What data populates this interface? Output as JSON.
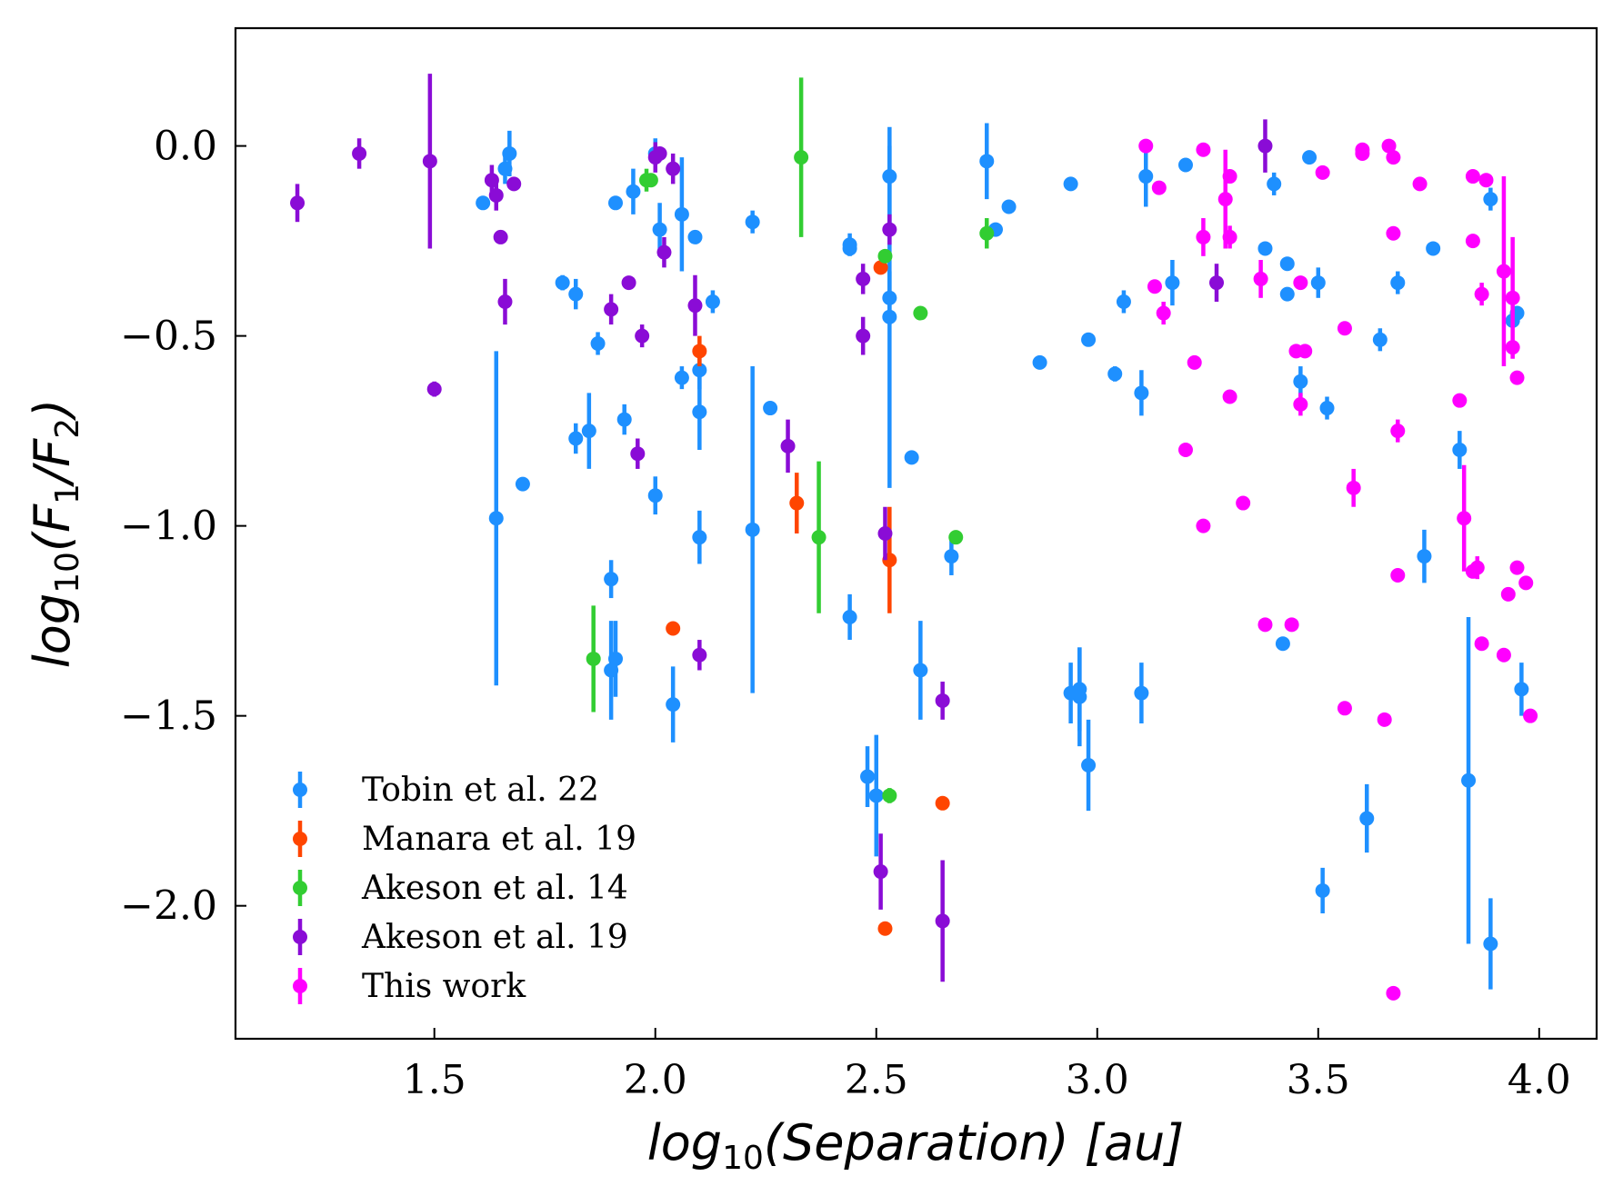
{
  "chart_data": {
    "type": "scatter",
    "title": "",
    "xlabel": "log10(Separation) [au]",
    "ylabel": "log10(F1/F2)",
    "xlim": [
      1.05,
      4.13
    ],
    "ylim": [
      -2.35,
      0.31
    ],
    "xticks": [
      1.5,
      2.0,
      2.5,
      3.0,
      3.5,
      4.0
    ],
    "xtick_labels": [
      "1.5",
      "2.0",
      "2.5",
      "3.0",
      "3.5",
      "4.0"
    ],
    "yticks": [
      0.0,
      -0.5,
      -1.0,
      -1.5,
      -2.0
    ],
    "ytick_labels": [
      "0.0",
      "−0.5",
      "−1.0",
      "−1.5",
      "−2.0"
    ],
    "grid": false,
    "legend_position": "bottom-left",
    "series": [
      {
        "name": "Tobin et al. 22",
        "color": "#1E90FF",
        "points": [
          [
            1.61,
            -0.15,
            0
          ],
          [
            1.66,
            -0.06,
            0.04
          ],
          [
            1.67,
            -0.02,
            0.06
          ],
          [
            1.79,
            -0.36,
            0.02
          ],
          [
            1.82,
            -0.39,
            0.04
          ],
          [
            1.82,
            -0.77,
            0.04
          ],
          [
            1.85,
            -0.75,
            0.1
          ],
          [
            1.87,
            -0.52,
            0.03
          ],
          [
            1.91,
            -0.15,
            0
          ],
          [
            1.95,
            -0.12,
            0.06
          ],
          [
            1.93,
            -0.72,
            0.04
          ],
          [
            1.9,
            -1.14,
            0.05
          ],
          [
            1.9,
            -1.38,
            0.13
          ],
          [
            1.91,
            -1.35,
            0.1
          ],
          [
            1.64,
            -0.98,
            0.44
          ],
          [
            1.7,
            -0.89,
            0
          ],
          [
            2.0,
            -0.02,
            0.04
          ],
          [
            2.01,
            -0.22,
            0.07
          ],
          [
            2.06,
            -0.18,
            0.15
          ],
          [
            2.09,
            -0.24,
            0
          ],
          [
            2.06,
            -0.61,
            0.03
          ],
          [
            2.1,
            -0.59,
            0.05
          ],
          [
            2.1,
            -0.7,
            0.1
          ],
          [
            2.13,
            -0.41,
            0.03
          ],
          [
            2.0,
            -0.92,
            0.05
          ],
          [
            2.1,
            -1.03,
            0.07
          ],
          [
            2.04,
            -1.47,
            0.1
          ],
          [
            2.22,
            -0.2,
            0.03
          ],
          [
            2.26,
            -0.69,
            0
          ],
          [
            2.22,
            -1.01,
            0.43
          ],
          [
            2.44,
            -0.26,
            0.03
          ],
          [
            2.44,
            -0.27,
            0
          ],
          [
            2.44,
            -1.24,
            0.06
          ],
          [
            2.48,
            -1.66,
            0.08
          ],
          [
            2.5,
            -1.71,
            0.16
          ],
          [
            2.53,
            -0.08,
            0.13
          ],
          [
            2.53,
            -0.4,
            0.07
          ],
          [
            2.53,
            -0.45,
            0.45
          ],
          [
            2.58,
            -0.82,
            0
          ],
          [
            2.6,
            -1.38,
            0.13
          ],
          [
            2.67,
            -1.08,
            0.05
          ],
          [
            2.75,
            -0.04,
            0.1
          ],
          [
            2.77,
            -0.22,
            0
          ],
          [
            2.8,
            -0.16,
            0
          ],
          [
            2.87,
            -0.57,
            0
          ],
          [
            2.94,
            -0.1,
            0
          ],
          [
            2.98,
            -0.51,
            0
          ],
          [
            3.04,
            -0.6,
            0.02
          ],
          [
            3.06,
            -0.41,
            0.03
          ],
          [
            3.1,
            -0.65,
            0.06
          ],
          [
            3.11,
            -0.08,
            0.08
          ],
          [
            3.17,
            -0.36,
            0.06
          ],
          [
            3.2,
            -0.05,
            0
          ],
          [
            2.94,
            -1.44,
            0.08
          ],
          [
            2.96,
            -1.43,
            0.11
          ],
          [
            2.96,
            -1.45,
            0.13
          ],
          [
            2.98,
            -1.63,
            0.12
          ],
          [
            3.1,
            -1.44,
            0.08
          ],
          [
            3.38,
            -0.27,
            0
          ],
          [
            3.4,
            -0.1,
            0.03
          ],
          [
            3.43,
            -0.31,
            0
          ],
          [
            3.43,
            -0.39,
            0
          ],
          [
            3.46,
            -0.62,
            0.04
          ],
          [
            3.48,
            -0.03,
            0
          ],
          [
            3.5,
            -0.36,
            0.04
          ],
          [
            3.52,
            -0.69,
            0.03
          ],
          [
            3.42,
            -1.31,
            0
          ],
          [
            3.51,
            -1.96,
            0.06
          ],
          [
            3.61,
            -1.77,
            0.09
          ],
          [
            3.64,
            -0.51,
            0.03
          ],
          [
            3.68,
            -0.36,
            0.03
          ],
          [
            3.74,
            -1.08,
            0.07
          ],
          [
            3.76,
            -0.27,
            0
          ],
          [
            3.82,
            -0.8,
            0.05
          ],
          [
            3.84,
            -1.67,
            0.43
          ],
          [
            3.89,
            -0.14,
            0.03
          ],
          [
            3.89,
            -2.1,
            0.12
          ],
          [
            3.94,
            -0.46,
            0
          ],
          [
            3.95,
            -0.44,
            0
          ],
          [
            3.96,
            -1.43,
            0.07
          ]
        ]
      },
      {
        "name": "Manara et al. 19",
        "color": "#FF4500",
        "points": [
          [
            2.04,
            -1.27,
            0
          ],
          [
            2.1,
            -0.54,
            0.04
          ],
          [
            2.32,
            -0.94,
            0.08
          ],
          [
            2.51,
            -0.32,
            0
          ],
          [
            2.52,
            -2.06,
            0
          ],
          [
            2.53,
            -1.09,
            0.14
          ],
          [
            2.65,
            -1.73,
            0
          ]
        ]
      },
      {
        "name": "Akeson et al. 14",
        "color": "#32CD32",
        "points": [
          [
            1.86,
            -1.35,
            0.14
          ],
          [
            1.98,
            -0.09,
            0.03
          ],
          [
            1.99,
            -0.09,
            0
          ],
          [
            2.33,
            -0.03,
            0.21
          ],
          [
            2.37,
            -1.03,
            0.2
          ],
          [
            2.52,
            -0.29,
            0
          ],
          [
            2.53,
            -1.71,
            0.02
          ],
          [
            2.6,
            -0.44,
            0
          ],
          [
            2.68,
            -1.03,
            0
          ],
          [
            2.75,
            -0.23,
            0.04
          ]
        ]
      },
      {
        "name": "Akeson et al. 19",
        "color": "#8A0CD6",
        "points": [
          [
            1.19,
            -0.15,
            0.05
          ],
          [
            1.33,
            -0.02,
            0.04
          ],
          [
            1.49,
            -0.04,
            0.23
          ],
          [
            1.5,
            -0.64,
            0.02
          ],
          [
            1.63,
            -0.09,
            0.04
          ],
          [
            1.64,
            -0.13,
            0.04
          ],
          [
            1.65,
            -0.24,
            0
          ],
          [
            1.66,
            -0.41,
            0.06
          ],
          [
            1.68,
            -0.1,
            0
          ],
          [
            1.9,
            -0.43,
            0.04
          ],
          [
            1.94,
            -0.36,
            0
          ],
          [
            1.96,
            -0.81,
            0.04
          ],
          [
            1.97,
            -0.5,
            0.03
          ],
          [
            2.0,
            -0.03,
            0.04
          ],
          [
            2.01,
            -0.02,
            0
          ],
          [
            2.02,
            -0.28,
            0.04
          ],
          [
            2.04,
            -0.06,
            0.04
          ],
          [
            2.09,
            -0.42,
            0.08
          ],
          [
            2.1,
            -1.34,
            0.04
          ],
          [
            2.3,
            -0.79,
            0.07
          ],
          [
            2.47,
            -0.35,
            0.04
          ],
          [
            2.47,
            -0.5,
            0.05
          ],
          [
            2.51,
            -1.91,
            0.1
          ],
          [
            2.52,
            -1.02,
            0.07
          ],
          [
            2.53,
            -0.22,
            0.04
          ],
          [
            2.65,
            -1.46,
            0.05
          ],
          [
            2.65,
            -2.04,
            0.16
          ],
          [
            3.27,
            -0.36,
            0.05
          ],
          [
            3.38,
            0.0,
            0.07
          ]
        ]
      },
      {
        "name": "This work",
        "color": "#FF00FF",
        "points": [
          [
            3.11,
            0.0,
            0
          ],
          [
            3.13,
            -0.37,
            0
          ],
          [
            3.14,
            -0.11,
            0
          ],
          [
            3.15,
            -0.44,
            0.03
          ],
          [
            3.22,
            -0.57,
            0
          ],
          [
            3.2,
            -0.8,
            0
          ],
          [
            3.24,
            -0.01,
            0
          ],
          [
            3.24,
            -0.24,
            0.05
          ],
          [
            3.24,
            -1.0,
            0
          ],
          [
            3.29,
            -0.14,
            0.13
          ],
          [
            3.3,
            -0.08,
            0
          ],
          [
            3.3,
            -0.24,
            0.03
          ],
          [
            3.3,
            -0.66,
            0
          ],
          [
            3.33,
            -0.94,
            0
          ],
          [
            3.37,
            -0.35,
            0.05
          ],
          [
            3.38,
            -1.26,
            0
          ],
          [
            3.44,
            -1.26,
            0
          ],
          [
            3.45,
            -0.54,
            0
          ],
          [
            3.47,
            -0.54,
            0
          ],
          [
            3.46,
            -0.36,
            0
          ],
          [
            3.46,
            -0.68,
            0.03
          ],
          [
            3.51,
            -0.07,
            0
          ],
          [
            3.56,
            -0.48,
            0
          ],
          [
            3.56,
            -1.48,
            0
          ],
          [
            3.58,
            -0.9,
            0.05
          ],
          [
            3.6,
            -0.01,
            0
          ],
          [
            3.6,
            -0.02,
            0
          ],
          [
            3.65,
            -1.51,
            0
          ],
          [
            3.66,
            0.0,
            0
          ],
          [
            3.67,
            -0.03,
            0
          ],
          [
            3.67,
            -0.23,
            0
          ],
          [
            3.68,
            -1.13,
            0
          ],
          [
            3.68,
            -0.75,
            0.03
          ],
          [
            3.67,
            -2.23,
            0
          ],
          [
            3.73,
            -0.1,
            0
          ],
          [
            3.82,
            -0.67,
            0
          ],
          [
            3.83,
            -0.98,
            0.14
          ],
          [
            3.85,
            -0.08,
            0
          ],
          [
            3.85,
            -0.25,
            0
          ],
          [
            3.85,
            -1.12,
            0
          ],
          [
            3.86,
            -1.11,
            0.03
          ],
          [
            3.87,
            -0.39,
            0.03
          ],
          [
            3.87,
            -1.31,
            0
          ],
          [
            3.88,
            -0.09,
            0
          ],
          [
            3.92,
            -0.33,
            0.25
          ],
          [
            3.92,
            -1.34,
            0
          ],
          [
            3.93,
            -1.18,
            0
          ],
          [
            3.94,
            -0.53,
            0
          ],
          [
            3.94,
            -0.4,
            0.16
          ],
          [
            3.95,
            -0.61,
            0
          ],
          [
            3.95,
            -1.11,
            0
          ],
          [
            3.97,
            -1.15,
            0
          ],
          [
            3.98,
            -1.5,
            0
          ]
        ]
      }
    ]
  }
}
